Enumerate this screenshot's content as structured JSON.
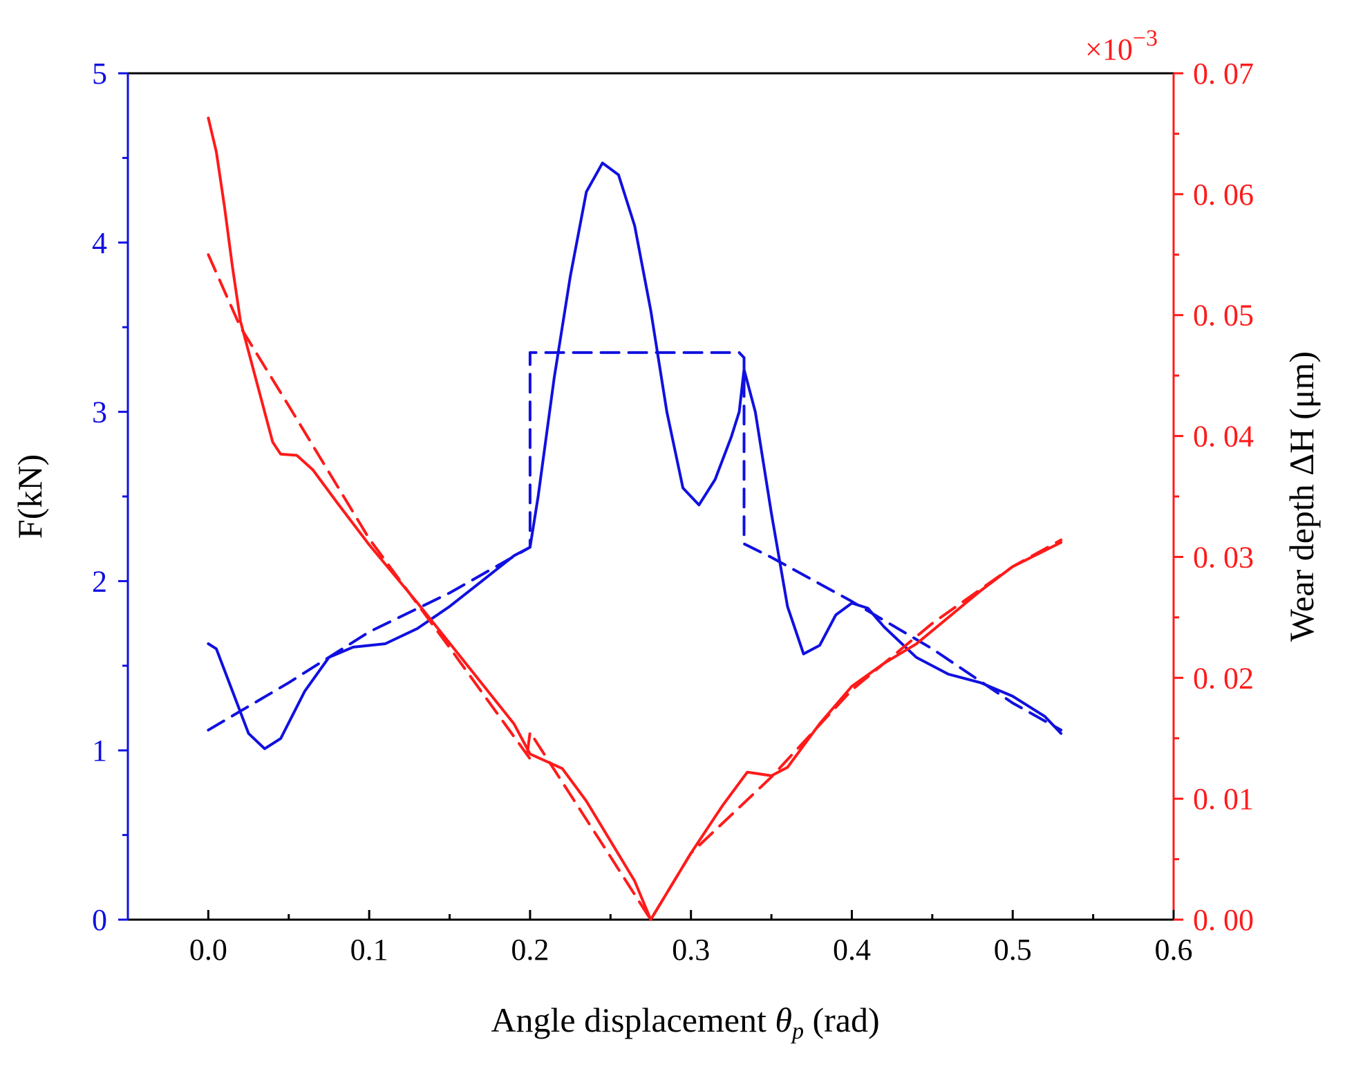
{
  "chart_data": {
    "type": "line",
    "title": "",
    "xlabel": "Angle displacement θp (rad)",
    "xlabel_parts": {
      "before": "Angle displacement ",
      "symbol": "θ",
      "subscript": "p",
      "after": " (rad)"
    },
    "ylabel_left": "F(kN)",
    "ylabel_right": "Wear depth ΔH (μm)",
    "right_axis_multiplier": {
      "base": "×10",
      "exponent": "−3"
    },
    "xlim": [
      -0.05,
      0.6
    ],
    "ylim_left": [
      0,
      5
    ],
    "ylim_right": [
      0,
      0.07
    ],
    "x_ticks": [
      0.0,
      0.1,
      0.2,
      0.3,
      0.4,
      0.5,
      0.6
    ],
    "x_tick_labels": [
      "0.0",
      "0.1",
      "0.2",
      "0.3",
      "0.4",
      "0.5",
      "0.6"
    ],
    "y_left_ticks": [
      0,
      1,
      2,
      3,
      4,
      5
    ],
    "y_left_tick_labels": [
      "0",
      "1",
      "2",
      "3",
      "4",
      "5"
    ],
    "y_right_ticks": [
      0,
      0.01,
      0.02,
      0.03,
      0.04,
      0.05,
      0.06,
      0.07
    ],
    "y_right_tick_labels": [
      "0. 00",
      "0. 01",
      "0. 02",
      "0. 03",
      "0. 04",
      "0. 05",
      "0. 06",
      "0. 07"
    ],
    "colors": {
      "force": "#1010e0",
      "wear": "#ff1a1a",
      "axis": "#000000"
    },
    "series": [
      {
        "name": "Force (solid)",
        "axis": "left",
        "color": "#1010e0",
        "style": "solid",
        "points": [
          [
            0.0,
            1.63
          ],
          [
            0.005,
            1.6
          ],
          [
            0.015,
            1.35
          ],
          [
            0.025,
            1.1
          ],
          [
            0.035,
            1.01
          ],
          [
            0.045,
            1.07
          ],
          [
            0.06,
            1.35
          ],
          [
            0.075,
            1.55
          ],
          [
            0.09,
            1.61
          ],
          [
            0.11,
            1.63
          ],
          [
            0.13,
            1.72
          ],
          [
            0.15,
            1.85
          ],
          [
            0.17,
            2.0
          ],
          [
            0.19,
            2.15
          ],
          [
            0.2,
            2.2
          ],
          [
            0.205,
            2.5
          ],
          [
            0.215,
            3.2
          ],
          [
            0.225,
            3.8
          ],
          [
            0.235,
            4.3
          ],
          [
            0.245,
            4.47
          ],
          [
            0.255,
            4.4
          ],
          [
            0.265,
            4.1
          ],
          [
            0.275,
            3.6
          ],
          [
            0.285,
            3.0
          ],
          [
            0.295,
            2.55
          ],
          [
            0.305,
            2.45
          ],
          [
            0.315,
            2.6
          ],
          [
            0.325,
            2.85
          ],
          [
            0.33,
            3.0
          ],
          [
            0.333,
            3.25
          ],
          [
            0.34,
            3.0
          ],
          [
            0.35,
            2.4
          ],
          [
            0.36,
            1.85
          ],
          [
            0.37,
            1.57
          ],
          [
            0.38,
            1.62
          ],
          [
            0.39,
            1.8
          ],
          [
            0.4,
            1.87
          ],
          [
            0.41,
            1.84
          ],
          [
            0.42,
            1.73
          ],
          [
            0.44,
            1.55
          ],
          [
            0.46,
            1.45
          ],
          [
            0.48,
            1.4
          ],
          [
            0.5,
            1.32
          ],
          [
            0.52,
            1.2
          ],
          [
            0.53,
            1.1
          ]
        ]
      },
      {
        "name": "Force (dashed)",
        "axis": "left",
        "color": "#1010e0",
        "style": "dashed",
        "points": [
          [
            0.0,
            1.12
          ],
          [
            0.05,
            1.4
          ],
          [
            0.1,
            1.7
          ],
          [
            0.15,
            1.93
          ],
          [
            0.2,
            2.2
          ],
          [
            0.2,
            3.35
          ],
          [
            0.33,
            3.35
          ],
          [
            0.333,
            3.32
          ],
          [
            0.333,
            2.22
          ],
          [
            0.35,
            2.14
          ],
          [
            0.4,
            1.88
          ],
          [
            0.45,
            1.6
          ],
          [
            0.5,
            1.28
          ],
          [
            0.53,
            1.12
          ]
        ]
      },
      {
        "name": "Wear depth (solid)",
        "axis": "right",
        "color": "#ff1a1a",
        "style": "solid",
        "points": [
          [
            0.0,
            0.0663
          ],
          [
            0.005,
            0.0635
          ],
          [
            0.01,
            0.059
          ],
          [
            0.015,
            0.054
          ],
          [
            0.02,
            0.0495
          ],
          [
            0.03,
            0.0445
          ],
          [
            0.04,
            0.0395
          ],
          [
            0.045,
            0.0385
          ],
          [
            0.055,
            0.0384
          ],
          [
            0.065,
            0.0372
          ],
          [
            0.08,
            0.0345
          ],
          [
            0.1,
            0.031
          ],
          [
            0.13,
            0.0262
          ],
          [
            0.16,
            0.0212
          ],
          [
            0.19,
            0.0162
          ],
          [
            0.2,
            0.0137
          ],
          [
            0.21,
            0.0131
          ],
          [
            0.22,
            0.0125
          ],
          [
            0.235,
            0.0098
          ],
          [
            0.25,
            0.0065
          ],
          [
            0.265,
            0.0032
          ],
          [
            0.275,
            0.0
          ],
          [
            0.285,
            0.0022
          ],
          [
            0.3,
            0.0055
          ],
          [
            0.32,
            0.0095
          ],
          [
            0.335,
            0.0122
          ],
          [
            0.34,
            0.0121
          ],
          [
            0.35,
            0.0119
          ],
          [
            0.36,
            0.0126
          ],
          [
            0.38,
            0.0162
          ],
          [
            0.4,
            0.0193
          ],
          [
            0.42,
            0.0212
          ],
          [
            0.44,
            0.0228
          ],
          [
            0.46,
            0.025
          ],
          [
            0.48,
            0.0272
          ],
          [
            0.5,
            0.0292
          ],
          [
            0.53,
            0.0312
          ]
        ]
      },
      {
        "name": "Wear depth (dashed)",
        "axis": "right",
        "color": "#ff1a1a",
        "style": "dashed",
        "points": [
          [
            0.0,
            0.055
          ],
          [
            0.02,
            0.049
          ],
          [
            0.05,
            0.0425
          ],
          [
            0.1,
            0.0315
          ],
          [
            0.15,
            0.0225
          ],
          [
            0.2,
            0.0133
          ],
          [
            0.198,
            0.0135
          ],
          [
            0.2,
            0.0155
          ],
          [
            0.25,
            0.0052
          ],
          [
            0.275,
            0.0
          ],
          [
            0.3,
            0.0055
          ],
          [
            0.35,
            0.0118
          ],
          [
            0.4,
            0.019
          ],
          [
            0.45,
            0.0245
          ],
          [
            0.5,
            0.0292
          ],
          [
            0.53,
            0.0314
          ]
        ]
      }
    ]
  }
}
